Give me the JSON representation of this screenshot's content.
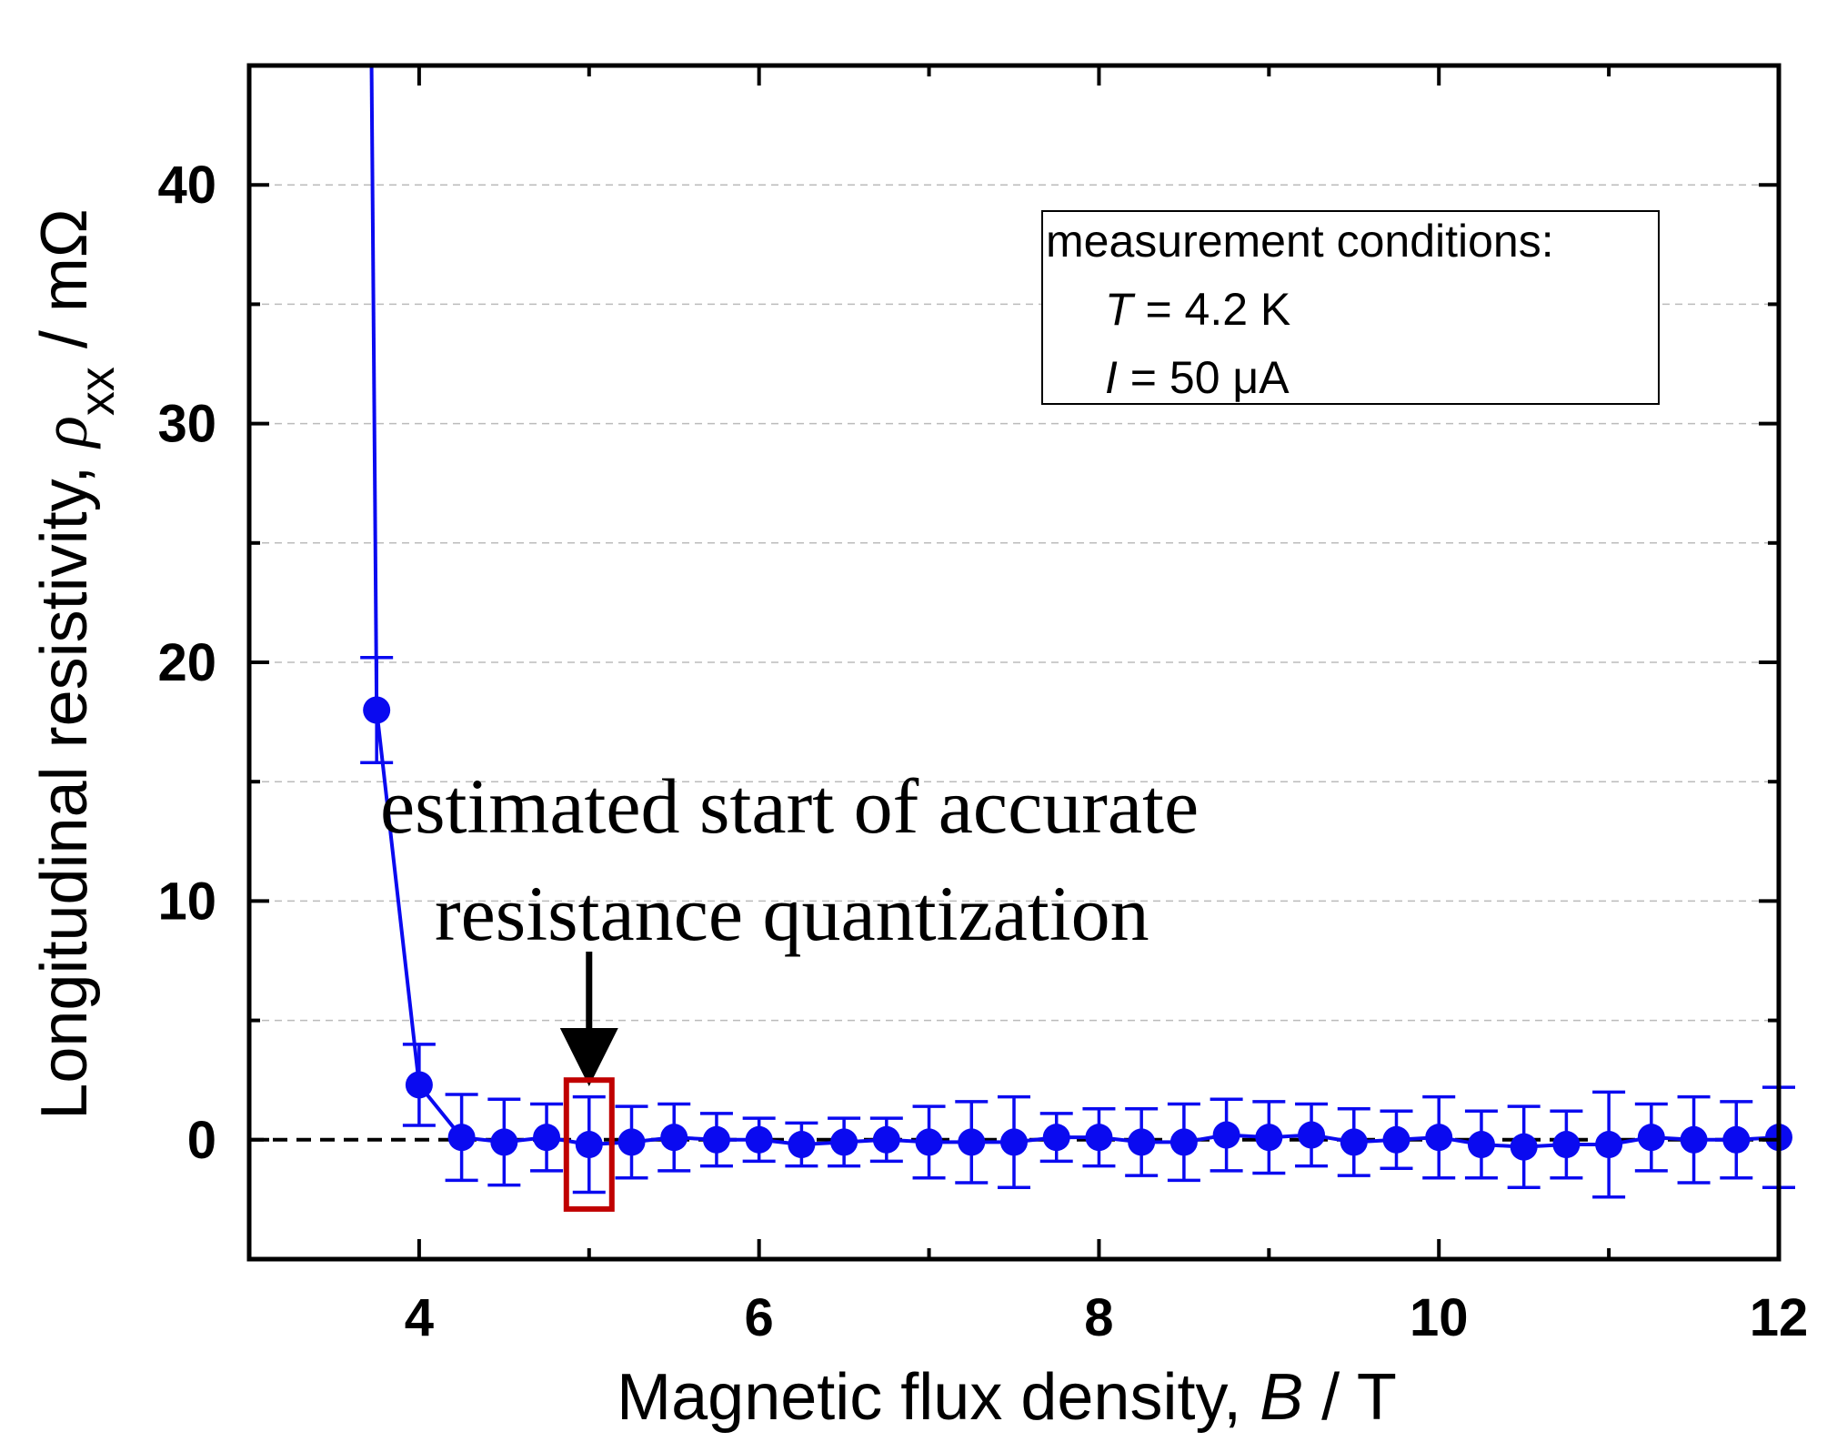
{
  "chart_data": {
    "type": "scatter",
    "title": "",
    "xlabel": {
      "text": "Magnetic flux density, ",
      "var": "B",
      "unit": " / T"
    },
    "ylabel": {
      "text": "Longitudinal resistivity, ",
      "var": "ρ",
      "sub": "xx",
      "unit": " / mΩ"
    },
    "xlim": [
      3,
      12
    ],
    "ylim": [
      -5,
      45
    ],
    "xticks": [
      4,
      6,
      8,
      10,
      12
    ],
    "yticks": [
      0,
      10,
      20,
      30,
      40
    ],
    "grid": true,
    "colors": {
      "series": "#0a0af0",
      "axis": "#000000",
      "grid": "#bbbbbb",
      "highlight": "#c00000"
    },
    "series": [
      {
        "name": "rho_xx",
        "x": [
          3.75,
          4.0,
          4.25,
          4.5,
          4.75,
          5.0,
          5.25,
          5.5,
          5.75,
          6.0,
          6.25,
          6.5,
          6.75,
          7.0,
          7.25,
          7.5,
          7.75,
          8.0,
          8.25,
          8.5,
          8.75,
          9.0,
          9.25,
          9.5,
          9.75,
          10.0,
          10.25,
          10.5,
          10.75,
          11.0,
          11.25,
          11.5,
          11.75,
          12.0
        ],
        "y": [
          18.0,
          2.3,
          0.1,
          -0.1,
          0.1,
          -0.2,
          -0.1,
          0.1,
          0.0,
          0.0,
          -0.2,
          -0.1,
          0.0,
          -0.1,
          -0.1,
          -0.1,
          0.1,
          0.1,
          -0.1,
          -0.1,
          0.2,
          0.1,
          0.2,
          -0.1,
          0.0,
          0.1,
          -0.2,
          -0.3,
          -0.2,
          -0.2,
          0.1,
          0.0,
          0.0,
          0.1
        ],
        "err": [
          2.2,
          1.7,
          1.8,
          1.8,
          1.4,
          2.0,
          1.5,
          1.4,
          1.1,
          0.9,
          0.9,
          1.0,
          0.9,
          1.5,
          1.7,
          1.9,
          1.0,
          1.2,
          1.4,
          1.6,
          1.5,
          1.5,
          1.3,
          1.4,
          1.2,
          1.7,
          1.4,
          1.7,
          1.4,
          2.2,
          1.4,
          1.8,
          1.6,
          2.1
        ]
      }
    ],
    "steep_segment": {
      "x": [
        3.72,
        3.75
      ],
      "y": [
        45,
        18.0
      ]
    },
    "reference_line": {
      "y": 0,
      "style": "dashed"
    },
    "legend": {
      "position": "top-right",
      "line1": "measurement conditions:",
      "line2_var": "T",
      "line2_rest": " = 4.2 K",
      "line3_var": "I",
      "line3_rest": " = 50 μA"
    },
    "annotation": {
      "line1": "estimated start of accurate",
      "line2": "resistance quantization",
      "target_x": 5.0
    }
  }
}
